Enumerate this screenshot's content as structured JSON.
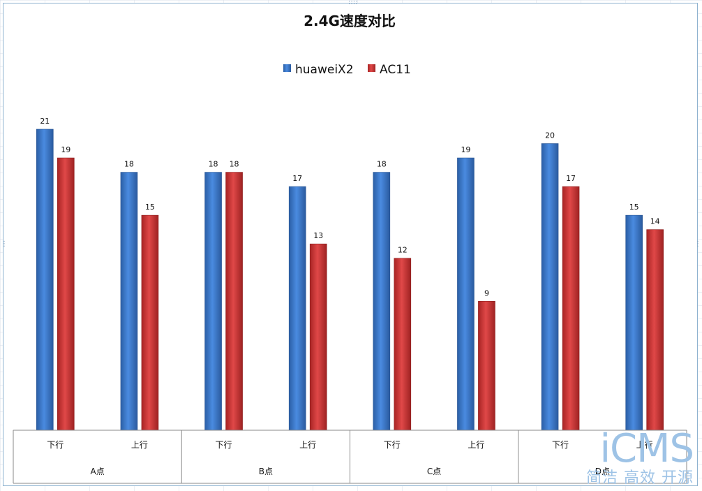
{
  "chart_data": {
    "type": "bar",
    "title": "2.4G速度对比",
    "groups": [
      "A点",
      "B点",
      "C点",
      "D点"
    ],
    "categories": [
      "下行",
      "上行",
      "下行",
      "上行",
      "下行",
      "上行",
      "下行",
      "上行"
    ],
    "series": [
      {
        "name": "huaweiX2",
        "color": "#3f7fd4",
        "values": [
          21,
          18,
          18,
          17,
          18,
          19,
          20,
          15
        ]
      },
      {
        "name": "AC11",
        "color": "#d33a3a",
        "values": [
          19,
          15,
          18,
          13,
          12,
          9,
          17,
          14
        ]
      }
    ],
    "ylim": [
      0,
      21
    ],
    "grid": false,
    "legend_position": "top"
  },
  "watermark": {
    "logo": "iCMS",
    "slogan": "简洁 高效 开源"
  }
}
